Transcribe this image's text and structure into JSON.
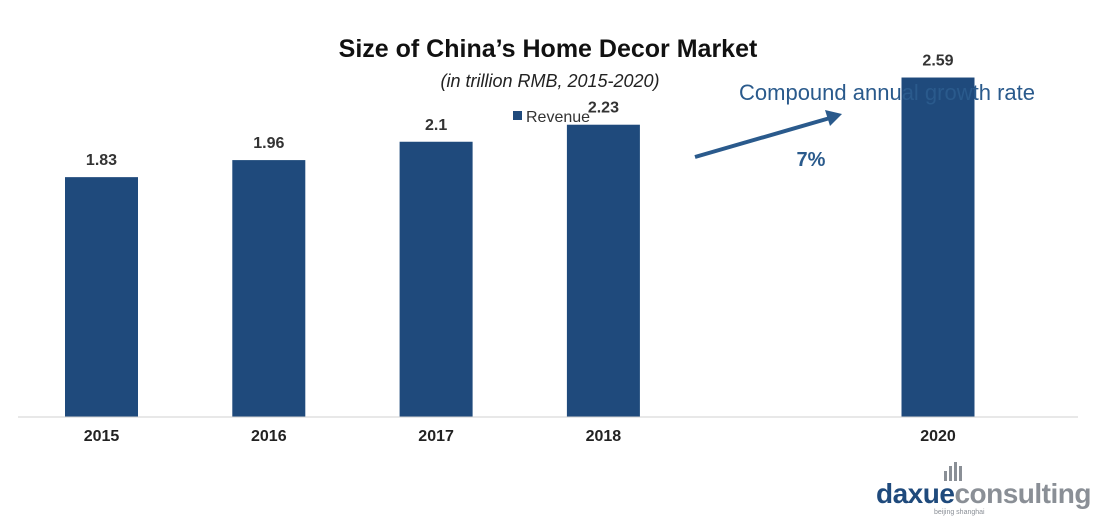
{
  "chart_data": {
    "type": "bar",
    "title": "Size of China’s Home Decor Market",
    "subtitle": "(in trillion RMB, 2015-2020)",
    "categories": [
      "2015",
      "2016",
      "2017",
      "2018",
      "",
      "2020"
    ],
    "series": [
      {
        "name": "Revenue",
        "values": [
          1.83,
          1.96,
          2.1,
          2.23,
          null,
          2.59
        ]
      }
    ],
    "value_labels": [
      "1.83",
      "1.96",
      "2.1",
      "2.23",
      "",
      "2.59"
    ],
    "xlabel": "",
    "ylabel": "",
    "ylim": [
      0,
      2.8
    ],
    "grid": false,
    "legend_position": "top-center",
    "annotation": {
      "text": "Compound annual growth rate",
      "value": "7%"
    }
  },
  "colors": {
    "bar": "#1f4a7c",
    "annotation": "#2a5a8c",
    "axis": "#d0d0d0",
    "logo_dark": "#1f4a7c",
    "logo_light": "#8a8f96"
  },
  "logo": {
    "part1": "daxue",
    "part2": "consulting",
    "tagline": "beijing shanghai"
  }
}
